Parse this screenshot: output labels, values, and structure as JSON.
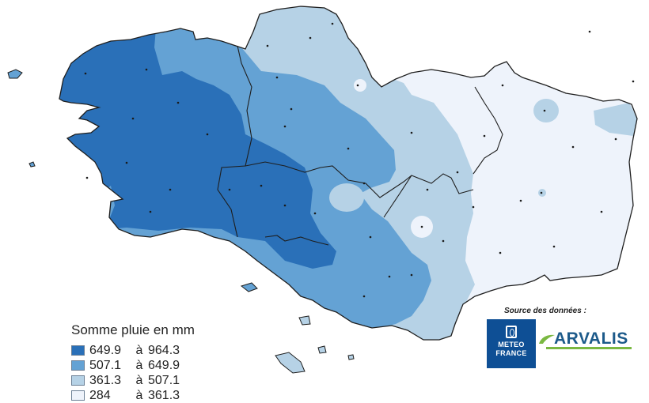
{
  "legend": {
    "title": "Somme pluie en mm",
    "classes": [
      {
        "lo": "649.9",
        "sep": "à",
        "hi": "964.3",
        "color": "#2a70b8"
      },
      {
        "lo": "507.1",
        "sep": "à",
        "hi": "649.9",
        "color": "#64a2d4"
      },
      {
        "lo": "361.3",
        "sep": "à",
        "hi": "507.1",
        "color": "#b6d2e6"
      },
      {
        "lo": "284",
        "sep": "à",
        "hi": "361.3",
        "color": "#eef3fb"
      }
    ]
  },
  "source": {
    "label": "Source des données :",
    "meteo_line1": "METEO",
    "meteo_line2": "FRANCE",
    "arvalis": "ARVALIS",
    "meteo_color": "#0e4f95",
    "arvalis_color": "#1c5a8a",
    "arvalis_accent": "#7ab841"
  }
}
